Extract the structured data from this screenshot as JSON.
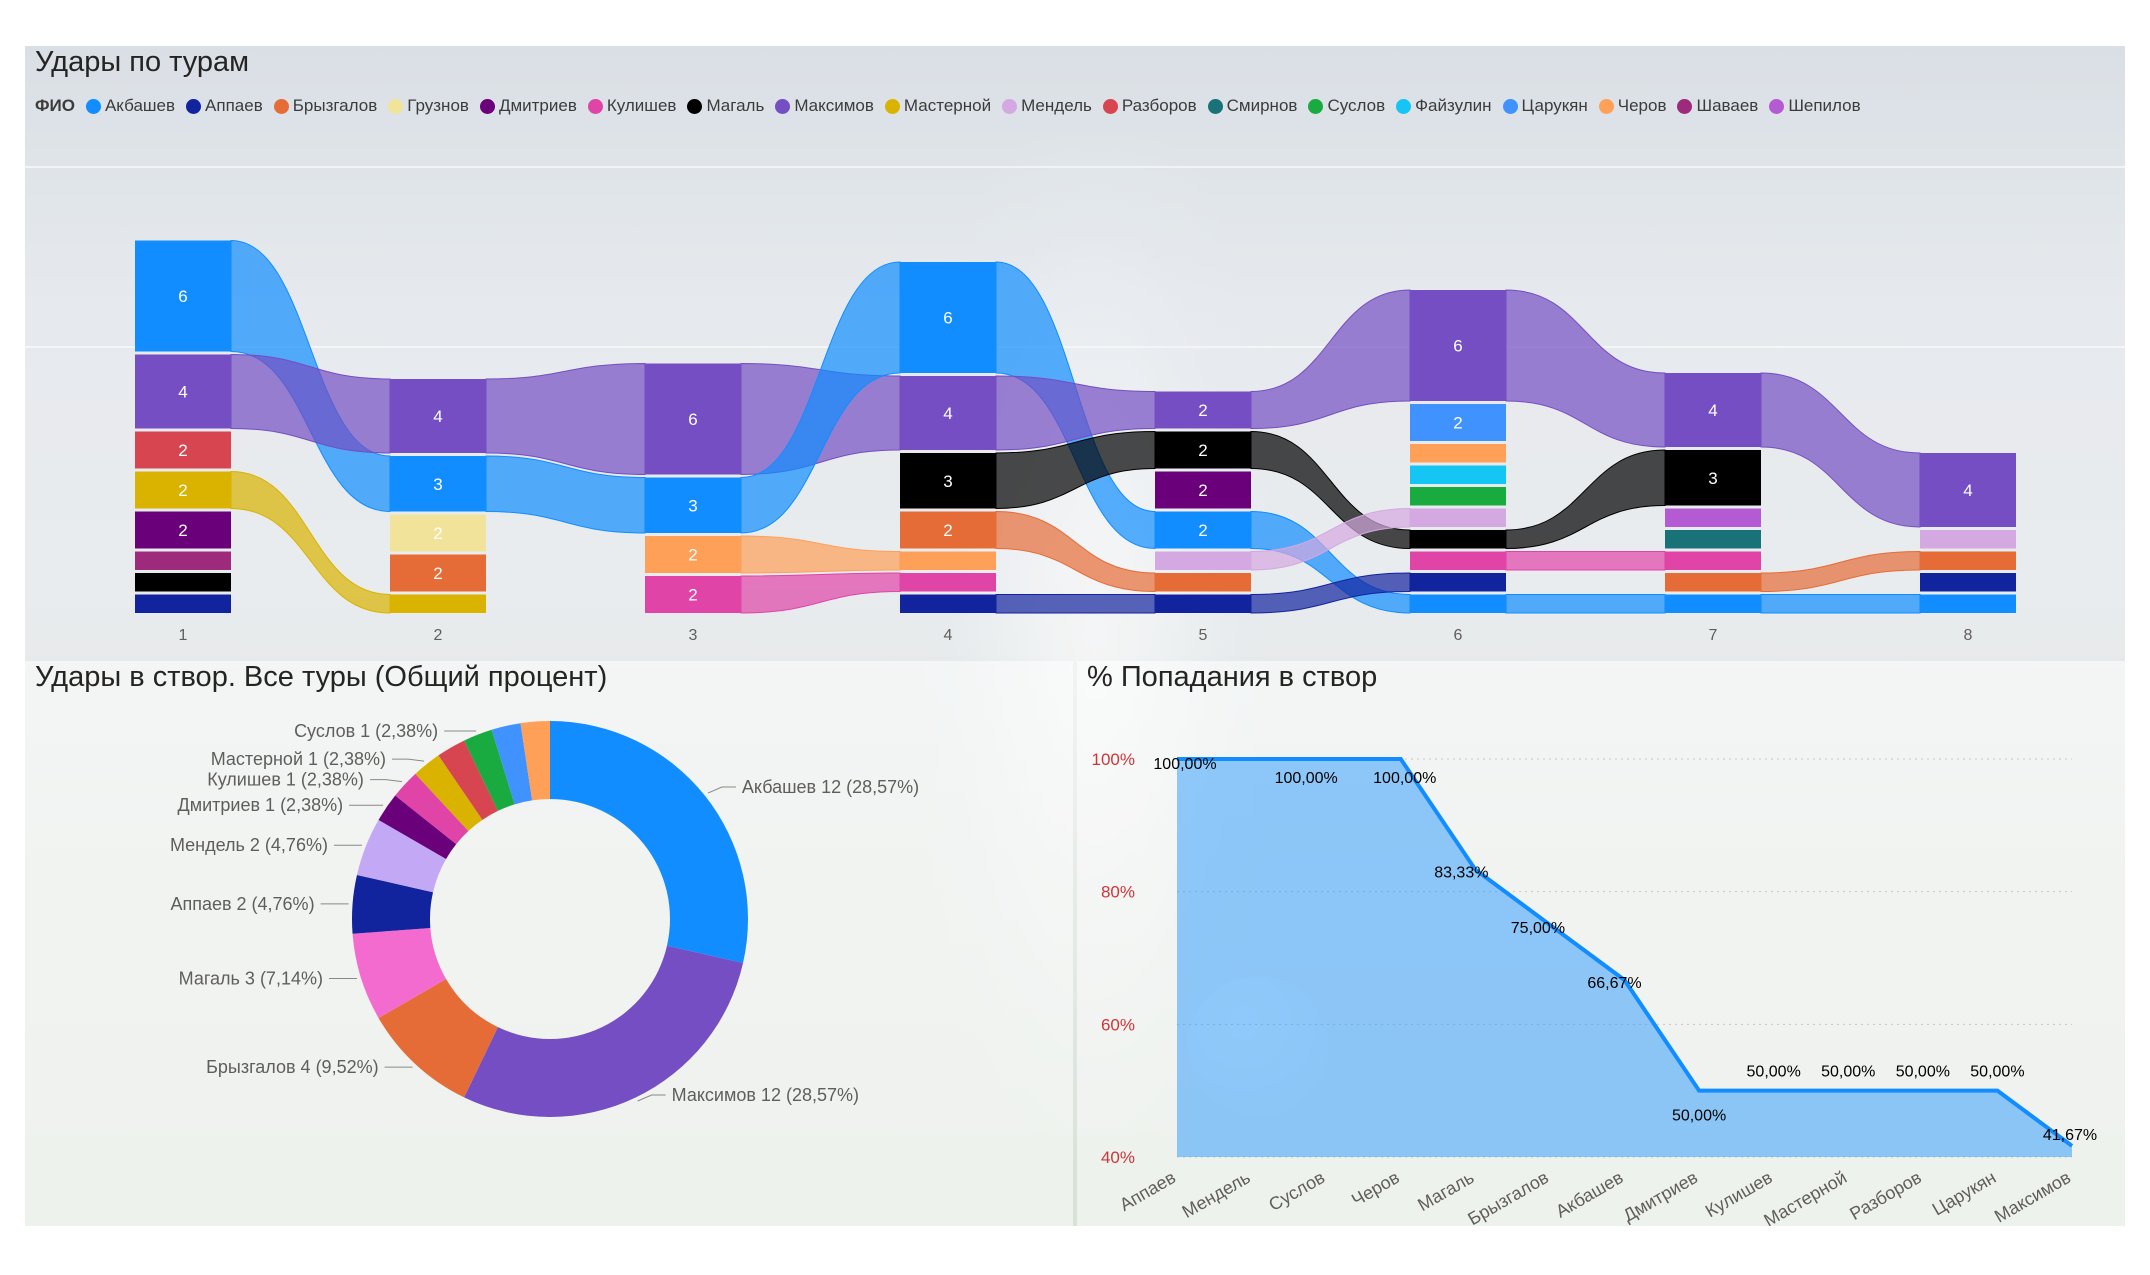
{
  "legend": {
    "title": "ФИО",
    "players": [
      {
        "name": "Акбашев",
        "color": "#118DFF"
      },
      {
        "name": "Аппаев",
        "color": "#12239E"
      },
      {
        "name": "Брызгалов",
        "color": "#E66C37"
      },
      {
        "name": "Грузнов",
        "color": "#F2E39A"
      },
      {
        "name": "Дмитриев",
        "color": "#6B007B"
      },
      {
        "name": "Кулишев",
        "color": "#E044A7"
      },
      {
        "name": "Магаль",
        "color": "#000000"
      },
      {
        "name": "Максимов",
        "color": "#744EC2"
      },
      {
        "name": "Мастерной",
        "color": "#D9B300"
      },
      {
        "name": "Мендель",
        "color": "#D4A8E0"
      },
      {
        "name": "Разборов",
        "color": "#D64550"
      },
      {
        "name": "Смирнов",
        "color": "#197278"
      },
      {
        "name": "Суслов",
        "color": "#1AAB40"
      },
      {
        "name": "Файзулин",
        "color": "#15C6F4"
      },
      {
        "name": "Царукян",
        "color": "#4092FF"
      },
      {
        "name": "Черов",
        "color": "#FFA058"
      },
      {
        "name": "Шаваев",
        "color": "#9D2A7B"
      },
      {
        "name": "Шепилов",
        "color": "#B45AD3"
      }
    ]
  },
  "chart_data": [
    {
      "type": "ribbon",
      "title": "Удары по турам",
      "categories": [
        "1",
        "2",
        "3",
        "4",
        "5",
        "6",
        "7",
        "8"
      ],
      "rounds": [
        [
          {
            "p": "Акбашев",
            "v": 6
          },
          {
            "p": "Максимов",
            "v": 4
          },
          {
            "p": "Разборов",
            "v": 2
          },
          {
            "p": "Мастерной",
            "v": 2
          },
          {
            "p": "Дмитриев",
            "v": 2
          },
          {
            "p": "Шаваев",
            "v": 1
          },
          {
            "p": "Магаль",
            "v": 1
          },
          {
            "p": "Аппаев",
            "v": 1
          }
        ],
        [
          {
            "p": "Максимов",
            "v": 4
          },
          {
            "p": "Акбашев",
            "v": 3
          },
          {
            "p": "Грузнов",
            "v": 2
          },
          {
            "p": "Брызгалов",
            "v": 2
          },
          {
            "p": "Мастерной",
            "v": 1
          }
        ],
        [
          {
            "p": "Максимов",
            "v": 6
          },
          {
            "p": "Акбашев",
            "v": 3
          },
          {
            "p": "Черов",
            "v": 2
          },
          {
            "p": "Кулишев",
            "v": 2
          }
        ],
        [
          {
            "p": "Акбашев",
            "v": 6
          },
          {
            "p": "Максимов",
            "v": 4
          },
          {
            "p": "Магаль",
            "v": 3
          },
          {
            "p": "Брызгалов",
            "v": 2
          },
          {
            "p": "Черов",
            "v": 1
          },
          {
            "p": "Кулишев",
            "v": 1
          },
          {
            "p": "Аппаев",
            "v": 1
          }
        ],
        [
          {
            "p": "Максимов",
            "v": 2
          },
          {
            "p": "Магаль",
            "v": 2
          },
          {
            "p": "Дмитриев",
            "v": 2
          },
          {
            "p": "Акбашев",
            "v": 2
          },
          {
            "p": "Мендель",
            "v": 1
          },
          {
            "p": "Брызгалов",
            "v": 1
          },
          {
            "p": "Аппаев",
            "v": 1
          }
        ],
        [
          {
            "p": "Максимов",
            "v": 6
          },
          {
            "p": "Царукян",
            "v": 2
          },
          {
            "p": "Черов",
            "v": 1
          },
          {
            "p": "Файзулин",
            "v": 1
          },
          {
            "p": "Суслов",
            "v": 1
          },
          {
            "p": "Мендель",
            "v": 1
          },
          {
            "p": "Магаль",
            "v": 1
          },
          {
            "p": "Кулишев",
            "v": 1
          },
          {
            "p": "Аппаев",
            "v": 1
          },
          {
            "p": "Акбашев",
            "v": 1
          }
        ],
        [
          {
            "p": "Максимов",
            "v": 4
          },
          {
            "p": "Магаль",
            "v": 3
          },
          {
            "p": "Шепилов",
            "v": 1
          },
          {
            "p": "Смирнов",
            "v": 1
          },
          {
            "p": "Кулишев",
            "v": 1
          },
          {
            "p": "Брызгалов",
            "v": 1
          },
          {
            "p": "Акбашев",
            "v": 1
          }
        ],
        [
          {
            "p": "Максимов",
            "v": 4
          },
          {
            "p": "Мендель",
            "v": 1
          },
          {
            "p": "Брызгалов",
            "v": 1
          },
          {
            "p": "Аппаев",
            "v": 1
          },
          {
            "p": "Акбашев",
            "v": 1
          }
        ]
      ]
    },
    {
      "type": "pie",
      "title": "Удары в створ. Все туры (Общий процент)",
      "slices": [
        {
          "name": "Акбашев",
          "value": 12,
          "label": "Акбашев 12 (28,57%)"
        },
        {
          "name": "Максимов",
          "value": 12,
          "label": "Максимов 12 (28,57%)"
        },
        {
          "name": "Брызгалов",
          "value": 4,
          "label": "Брызгалов 4 (9,52%)"
        },
        {
          "name": "Магаль",
          "value": 3,
          "label": "Магаль 3 (7,14%)"
        },
        {
          "name": "Аппаев",
          "value": 2,
          "label": "Аппаев 2 (4,76%)"
        },
        {
          "name": "Мендель",
          "value": 2,
          "label": "Мендель 2 (4,76%)"
        },
        {
          "name": "Дмитриев",
          "value": 1,
          "label": "Дмитриев 1 (2,38%)"
        },
        {
          "name": "Кулишев",
          "value": 1,
          "label": "Кулишев 1 (2,38%)"
        },
        {
          "name": "Мастерной",
          "value": 1,
          "label": "Мастерной 1 (2,38%)"
        },
        {
          "name": "Разборов",
          "value": 1,
          "label": ""
        },
        {
          "name": "Суслов",
          "value": 1,
          "label": "Суслов 1 (2,38%)"
        },
        {
          "name": "Царукян",
          "value": 1,
          "label": ""
        },
        {
          "name": "Черов",
          "value": 1,
          "label": ""
        }
      ],
      "colors": {
        "Акбашев": "#118DFF",
        "Максимов": "#744EC2",
        "Брызгалов": "#E66C37",
        "Магаль": "#F46BD0",
        "Аппаев": "#12239E",
        "Мендель": "#C3A8F6",
        "Дмитриев": "#6B007B",
        "Кулишев": "#E044A7",
        "Мастерной": "#D9B300",
        "Разборов": "#D64550",
        "Суслов": "#1AAB40",
        "Царукян": "#4092FF",
        "Черов": "#FFA058"
      }
    },
    {
      "type": "area",
      "title": "% Попадания в створ",
      "categories": [
        "Аппаев",
        "Мендель",
        "Суслов",
        "Черов",
        "Магаль",
        "Брызгалов",
        "Акбашев",
        "Дмитриев",
        "Кулишев",
        "Мастерной",
        "Разборов",
        "Царукян",
        "Максимов"
      ],
      "values": [
        100,
        100,
        100,
        100,
        83.33,
        75,
        66.67,
        50,
        50,
        50,
        50,
        50,
        41.67
      ],
      "data_labels": [
        "100,00%",
        "",
        "100,00%",
        "100,00%",
        "83,33%",
        "75,00%",
        "66,67%",
        "50,00%",
        "50,00%",
        "50,00%",
        "50,00%",
        "50,00%",
        "41,67%"
      ],
      "yticks": [
        "100%",
        "80%",
        "60%",
        "40%"
      ],
      "ylim": [
        40,
        100
      ],
      "grid": true
    }
  ]
}
